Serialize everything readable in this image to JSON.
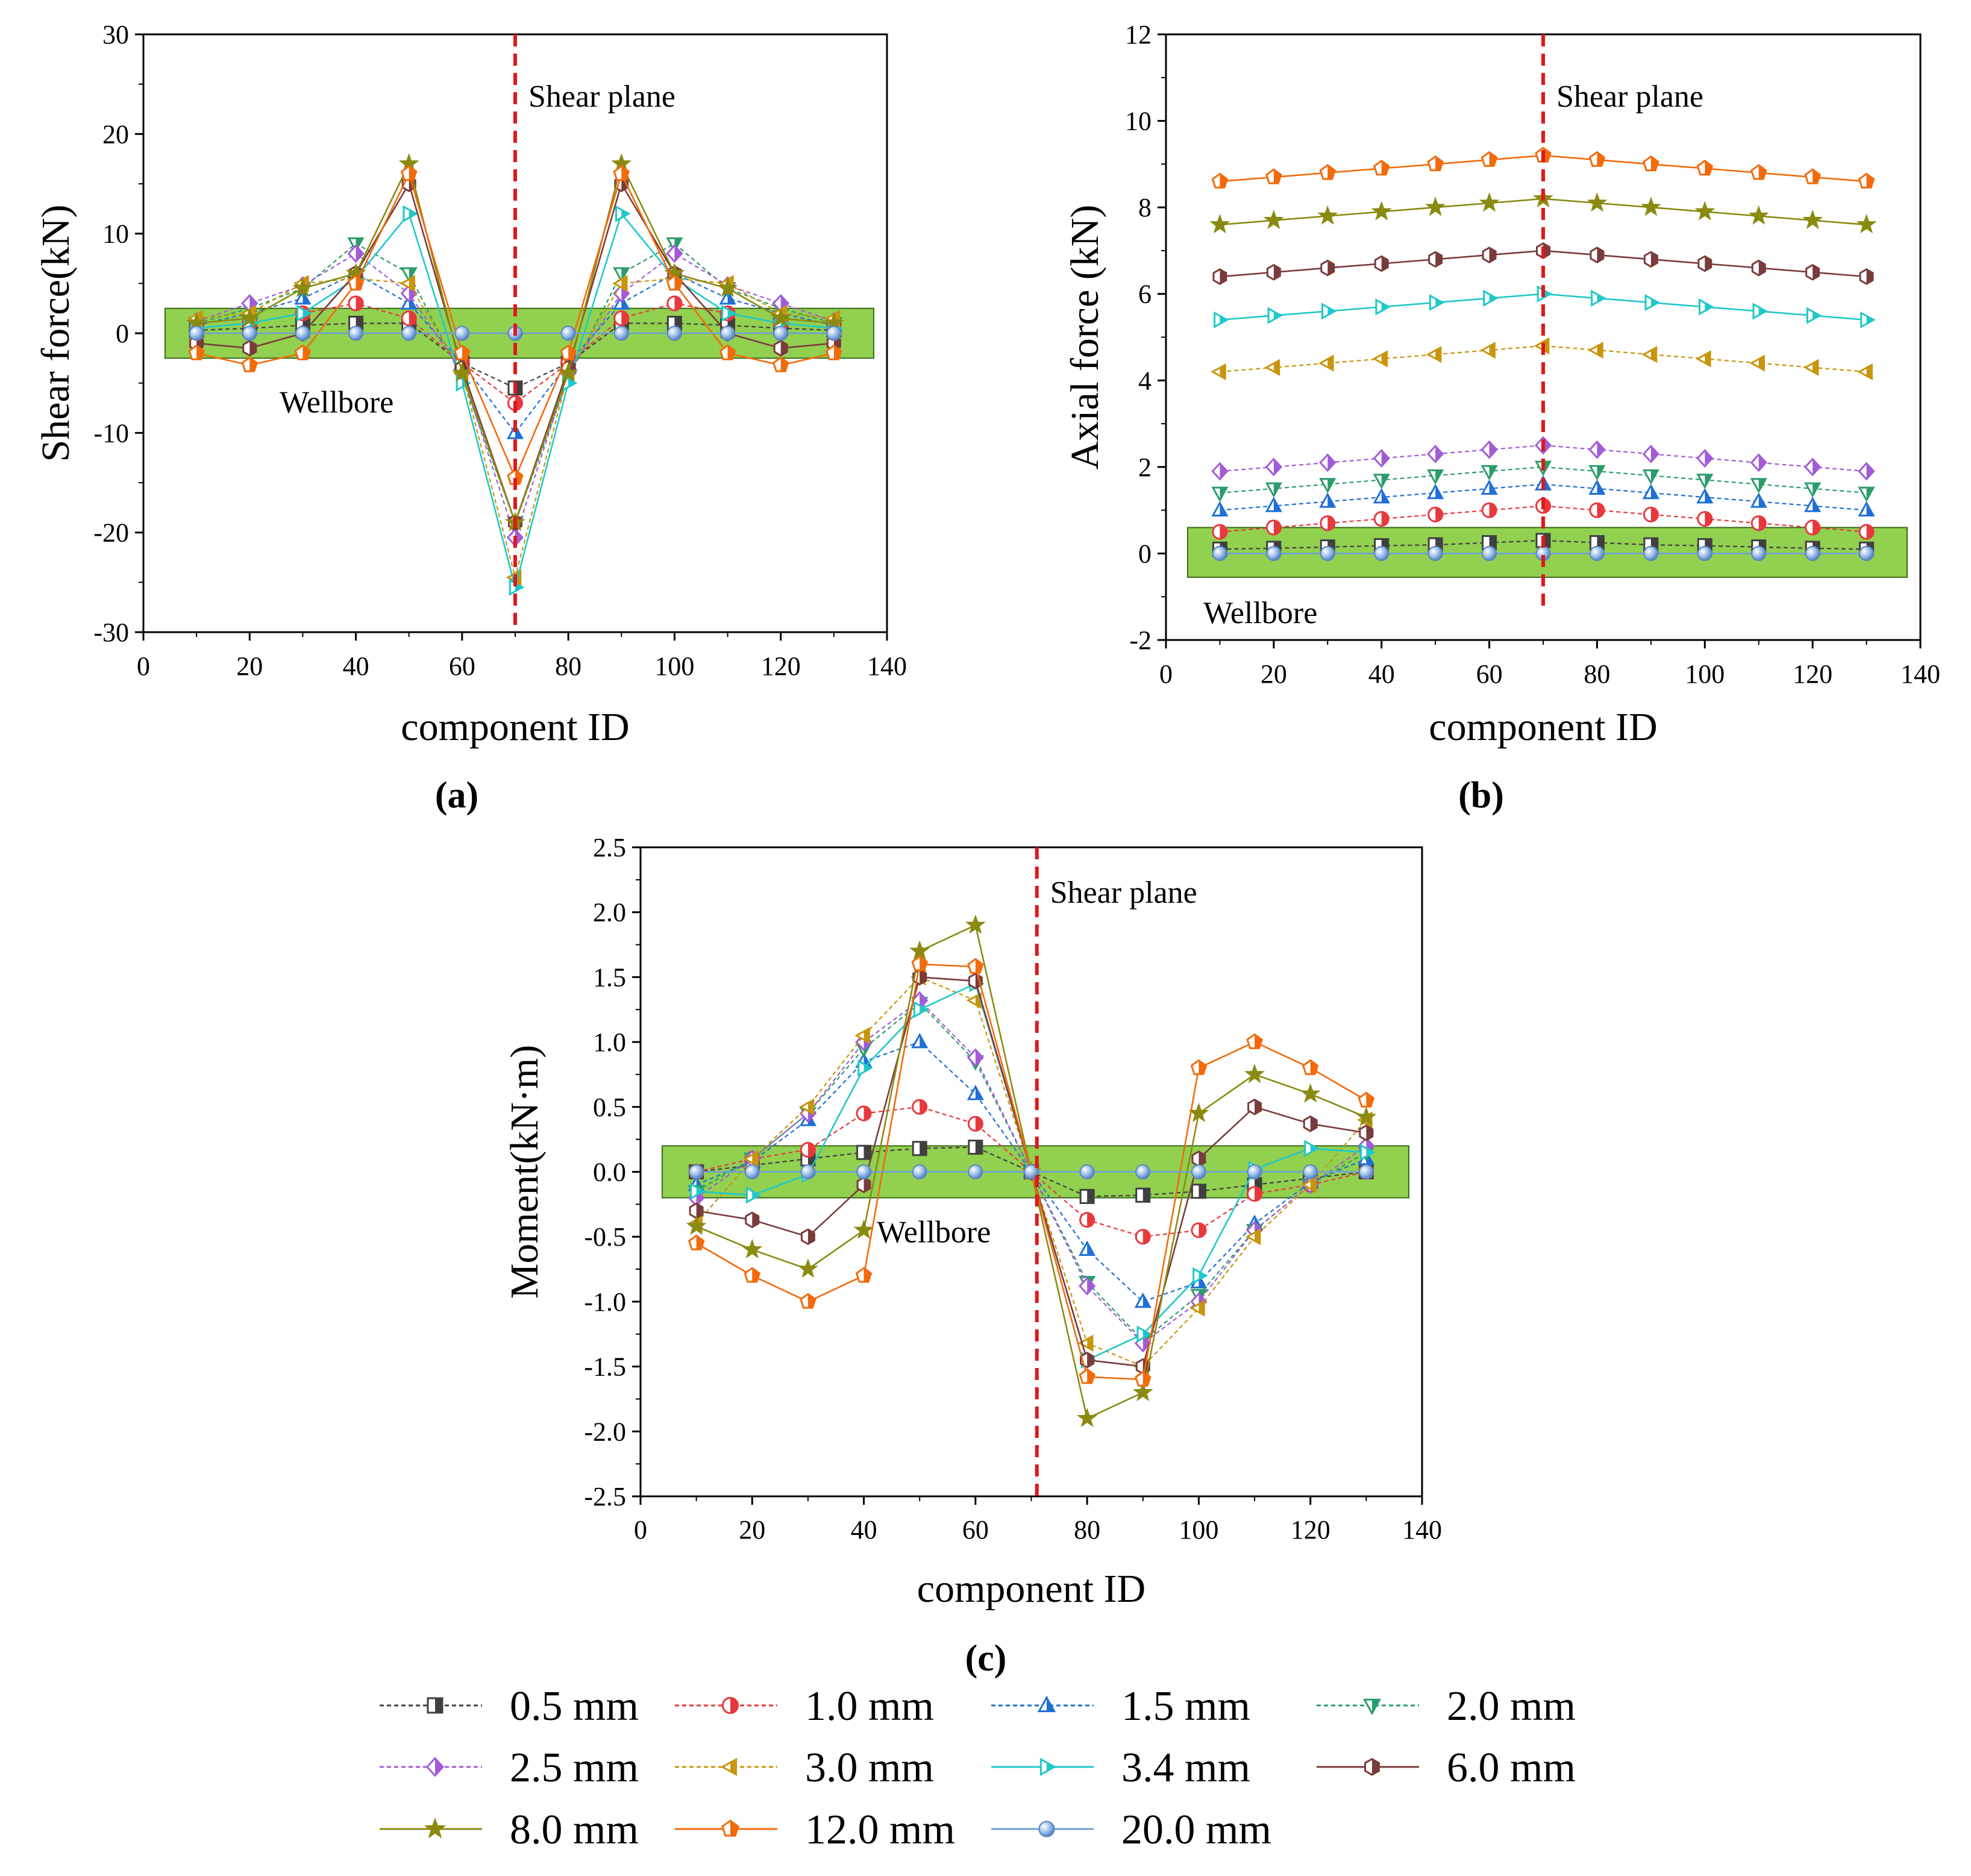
{
  "chart_data": [
    {
      "id": "a",
      "type": "line",
      "panel_label": "(a)",
      "title": "",
      "xlabel": "component ID",
      "ylabel": "Shear force(kN)",
      "xlim": [
        0,
        140
      ],
      "ylim": [
        -30,
        30
      ],
      "xticks": [
        0,
        20,
        40,
        60,
        80,
        100,
        120,
        140
      ],
      "yticks": [
        -30,
        -20,
        -10,
        0,
        10,
        20,
        30
      ],
      "x": [
        10,
        20,
        30,
        40,
        50,
        60,
        70,
        80,
        90,
        100,
        110,
        120,
        130
      ],
      "annotations": {
        "shear_plane": "Shear plane",
        "shear_plane_x": 70,
        "wellbore": "Wellbore",
        "wellbore_range": [
          -2.5,
          2.5
        ]
      },
      "series": [
        {
          "name": "0.5 mm",
          "values": [
            0.3,
            0.5,
            0.8,
            1.0,
            1.0,
            -3.0,
            -5.5,
            -3.0,
            1.0,
            1.0,
            0.8,
            0.5,
            0.3
          ]
        },
        {
          "name": "1.0 mm",
          "values": [
            0.5,
            1.0,
            2.0,
            3.0,
            1.5,
            -3.0,
            -7.0,
            -3.0,
            1.5,
            3.0,
            2.0,
            1.0,
            0.5
          ]
        },
        {
          "name": "1.5 mm",
          "values": [
            0.8,
            2.0,
            3.5,
            6.0,
            3.0,
            -3.0,
            -10.0,
            -3.0,
            3.0,
            6.0,
            3.5,
            2.0,
            0.8
          ]
        },
        {
          "name": "2.0 mm",
          "values": [
            1.0,
            2.5,
            4.5,
            9.0,
            6.0,
            -4.5,
            -19.0,
            -4.5,
            6.0,
            9.0,
            4.5,
            2.5,
            1.0
          ]
        },
        {
          "name": "2.5 mm",
          "values": [
            1.2,
            3.0,
            4.8,
            8.0,
            4.0,
            -4.0,
            -20.5,
            -4.0,
            4.0,
            8.0,
            4.8,
            3.0,
            1.2
          ]
        },
        {
          "name": "3.0 mm",
          "values": [
            1.5,
            2.0,
            5.0,
            5.5,
            5.0,
            -4.0,
            -24.5,
            -4.0,
            5.0,
            5.5,
            5.0,
            2.0,
            1.5
          ]
        },
        {
          "name": "3.4 mm",
          "values": [
            0.5,
            1.0,
            2.0,
            5.5,
            12.0,
            -5.0,
            -25.5,
            -5.0,
            12.0,
            5.5,
            2.0,
            1.0,
            0.5
          ]
        },
        {
          "name": "6.0 mm",
          "values": [
            -1.0,
            -1.5,
            0.0,
            6.0,
            15.0,
            -3.5,
            -19.0,
            -3.5,
            15.0,
            6.0,
            0.0,
            -1.5,
            -1.0
          ]
        },
        {
          "name": "8.0 mm",
          "values": [
            1.0,
            1.5,
            4.5,
            6.0,
            17.0,
            -4.0,
            -19.0,
            -4.0,
            17.0,
            6.0,
            4.5,
            1.5,
            1.0
          ]
        },
        {
          "name": "12.0 mm",
          "values": [
            -2.0,
            -3.2,
            -2.0,
            5.0,
            16.0,
            -2.0,
            -14.5,
            -2.0,
            16.0,
            5.0,
            -2.0,
            -3.2,
            -2.0
          ]
        },
        {
          "name": "20.0 mm",
          "values": [
            0,
            0,
            0,
            0,
            0,
            0,
            0,
            0,
            0,
            0,
            0,
            0,
            0
          ]
        }
      ]
    },
    {
      "id": "b",
      "type": "line",
      "panel_label": "(b)",
      "title": "",
      "xlabel": "component ID",
      "ylabel": "Axial force  (kN)",
      "xlim": [
        0,
        140
      ],
      "ylim": [
        -2,
        12
      ],
      "xticks": [
        0,
        20,
        40,
        60,
        80,
        100,
        120,
        140
      ],
      "yticks": [
        -2,
        0,
        2,
        4,
        6,
        8,
        10,
        12
      ],
      "x": [
        10,
        20,
        30,
        40,
        50,
        60,
        70,
        80,
        90,
        100,
        110,
        120,
        130
      ],
      "annotations": {
        "shear_plane": "Shear plane",
        "shear_plane_x": 70,
        "wellbore": "Wellbore",
        "wellbore_range": [
          -0.55,
          0.6
        ]
      },
      "series": [
        {
          "name": "0.5 mm",
          "values": [
            0.1,
            0.12,
            0.15,
            0.18,
            0.2,
            0.25,
            0.3,
            0.25,
            0.2,
            0.18,
            0.15,
            0.12,
            0.1
          ]
        },
        {
          "name": "1.0 mm",
          "values": [
            0.5,
            0.6,
            0.7,
            0.8,
            0.9,
            1.0,
            1.1,
            1.0,
            0.9,
            0.8,
            0.7,
            0.6,
            0.5
          ]
        },
        {
          "name": "1.5 mm",
          "values": [
            1.0,
            1.1,
            1.2,
            1.3,
            1.4,
            1.5,
            1.6,
            1.5,
            1.4,
            1.3,
            1.2,
            1.1,
            1.0
          ]
        },
        {
          "name": "2.0 mm",
          "values": [
            1.4,
            1.5,
            1.6,
            1.7,
            1.8,
            1.9,
            2.0,
            1.9,
            1.8,
            1.7,
            1.6,
            1.5,
            1.4
          ]
        },
        {
          "name": "2.5 mm",
          "values": [
            1.9,
            2.0,
            2.1,
            2.2,
            2.3,
            2.4,
            2.5,
            2.4,
            2.3,
            2.2,
            2.1,
            2.0,
            1.9
          ]
        },
        {
          "name": "3.0 mm",
          "values": [
            4.2,
            4.3,
            4.4,
            4.5,
            4.6,
            4.7,
            4.8,
            4.7,
            4.6,
            4.5,
            4.4,
            4.3,
            4.2
          ]
        },
        {
          "name": "3.4 mm",
          "values": [
            5.4,
            5.5,
            5.6,
            5.7,
            5.8,
            5.9,
            6.0,
            5.9,
            5.8,
            5.7,
            5.6,
            5.5,
            5.4
          ]
        },
        {
          "name": "6.0 mm",
          "values": [
            6.4,
            6.5,
            6.6,
            6.7,
            6.8,
            6.9,
            7.0,
            6.9,
            6.8,
            6.7,
            6.6,
            6.5,
            6.4
          ]
        },
        {
          "name": "8.0 mm",
          "values": [
            7.6,
            7.7,
            7.8,
            7.9,
            8.0,
            8.1,
            8.2,
            8.1,
            8.0,
            7.9,
            7.8,
            7.7,
            7.6
          ]
        },
        {
          "name": "12.0 mm",
          "values": [
            8.6,
            8.7,
            8.8,
            8.9,
            9.0,
            9.1,
            9.2,
            9.1,
            9.0,
            8.9,
            8.8,
            8.7,
            8.6
          ]
        },
        {
          "name": "20.0 mm",
          "values": [
            0,
            0,
            0,
            0,
            0,
            0,
            0,
            0,
            0,
            0,
            0,
            0,
            0
          ]
        }
      ]
    },
    {
      "id": "c",
      "type": "line",
      "panel_label": "(c)",
      "title": "",
      "xlabel": "component ID",
      "ylabel": "Moment(kN·m)",
      "xlim": [
        0,
        140
      ],
      "ylim": [
        -2.5,
        2.5
      ],
      "xticks": [
        0,
        20,
        40,
        60,
        80,
        100,
        120,
        140
      ],
      "yticks": [
        -2.5,
        -2.0,
        -1.5,
        -1.0,
        -0.5,
        0.0,
        0.5,
        1.0,
        1.5,
        2.0,
        2.5
      ],
      "ytick_labels": [
        "-2.5",
        "-2.0",
        "-1.5",
        "-1.0",
        "-0.5",
        "0.0",
        "0.5",
        "1.0",
        "1.5",
        "2.0",
        "2.5"
      ],
      "x": [
        10,
        20,
        30,
        40,
        50,
        60,
        70,
        80,
        90,
        100,
        110,
        120,
        130
      ],
      "annotations": {
        "shear_plane": "Shear plane",
        "shear_plane_x": 71,
        "wellbore": "Wellbore",
        "wellbore_range": [
          -0.2,
          0.2
        ]
      },
      "series": [
        {
          "name": "0.5 mm",
          "values": [
            0.0,
            0.05,
            0.1,
            0.15,
            0.18,
            0.19,
            0.0,
            -0.19,
            -0.18,
            -0.15,
            -0.1,
            -0.05,
            0.0
          ]
        },
        {
          "name": "1.0 mm",
          "values": [
            0.0,
            0.1,
            0.17,
            0.45,
            0.5,
            0.37,
            0.0,
            -0.37,
            -0.5,
            -0.45,
            -0.17,
            -0.1,
            0.0
          ]
        },
        {
          "name": "1.5 mm",
          "values": [
            -0.1,
            0.08,
            0.4,
            0.85,
            1.0,
            0.6,
            0.0,
            -0.6,
            -1.0,
            -0.85,
            -0.4,
            -0.08,
            0.1
          ]
        },
        {
          "name": "2.0 mm",
          "values": [
            -0.15,
            0.1,
            0.45,
            0.95,
            1.3,
            0.85,
            0.0,
            -0.85,
            -1.3,
            -0.95,
            -0.45,
            -0.1,
            0.15
          ]
        },
        {
          "name": "2.5 mm",
          "values": [
            -0.2,
            0.1,
            0.45,
            1.0,
            1.32,
            0.88,
            0.0,
            -0.88,
            -1.32,
            -1.0,
            -0.45,
            -0.1,
            0.2
          ]
        },
        {
          "name": "3.0 mm",
          "values": [
            -0.4,
            0.1,
            0.5,
            1.05,
            1.5,
            1.32,
            0.0,
            -1.32,
            -1.5,
            -1.05,
            -0.5,
            -0.1,
            0.4
          ]
        },
        {
          "name": "3.4 mm",
          "values": [
            -0.15,
            -0.18,
            -0.02,
            0.8,
            1.25,
            1.45,
            0.0,
            -1.45,
            -1.25,
            -0.8,
            0.02,
            0.18,
            0.15
          ]
        },
        {
          "name": "6.0 mm",
          "values": [
            -0.3,
            -0.37,
            -0.5,
            -0.1,
            1.5,
            1.47,
            0.0,
            -1.45,
            -1.5,
            0.1,
            0.5,
            0.37,
            0.3
          ]
        },
        {
          "name": "8.0 mm",
          "values": [
            -0.42,
            -0.6,
            -0.75,
            -0.45,
            1.7,
            1.9,
            0.0,
            -1.9,
            -1.7,
            0.45,
            0.75,
            0.6,
            0.42
          ]
        },
        {
          "name": "12.0 mm",
          "values": [
            -0.55,
            -0.8,
            -1.0,
            -0.8,
            1.6,
            1.58,
            0.0,
            -1.58,
            -1.6,
            0.8,
            1.0,
            0.8,
            0.55
          ]
        },
        {
          "name": "20.0 mm",
          "values": [
            0,
            0,
            0,
            0,
            0,
            0,
            0,
            0,
            0,
            0,
            0,
            0,
            0
          ]
        }
      ]
    }
  ],
  "legend": {
    "placement": "bottom",
    "items": [
      {
        "name": "0.5 mm",
        "color": "#404040",
        "marker": "square-half",
        "dash": true
      },
      {
        "name": "1.0 mm",
        "color": "#e8383d",
        "marker": "circle-half",
        "dash": true
      },
      {
        "name": "1.5 mm",
        "color": "#1f6fd6",
        "marker": "triangle-half",
        "dash": true
      },
      {
        "name": "2.0 mm",
        "color": "#2a9d6a",
        "marker": "triangle-down-half",
        "dash": true
      },
      {
        "name": "2.5 mm",
        "color": "#a25bd6",
        "marker": "diamond-half",
        "dash": true
      },
      {
        "name": "3.0 mm",
        "color": "#c8950c",
        "marker": "triangle-left-half",
        "dash": true
      },
      {
        "name": "3.4 mm",
        "color": "#1fc8c8",
        "marker": "triangle-right-half",
        "dash": false
      },
      {
        "name": "6.0 mm",
        "color": "#7a3b3b",
        "marker": "hexagon-half",
        "dash": false
      },
      {
        "name": "8.0 mm",
        "color": "#8a8a10",
        "marker": "star",
        "dash": false
      },
      {
        "name": "12.0 mm",
        "color": "#f26a0a",
        "marker": "pentagon-half",
        "dash": false
      },
      {
        "name": "20.0 mm",
        "color": "#6f9fd8",
        "marker": "sphere",
        "dash": false
      }
    ]
  },
  "colors": {
    "shear_plane": "#e01818",
    "wellbore_fill": "#92d050",
    "axis": "#000000"
  }
}
